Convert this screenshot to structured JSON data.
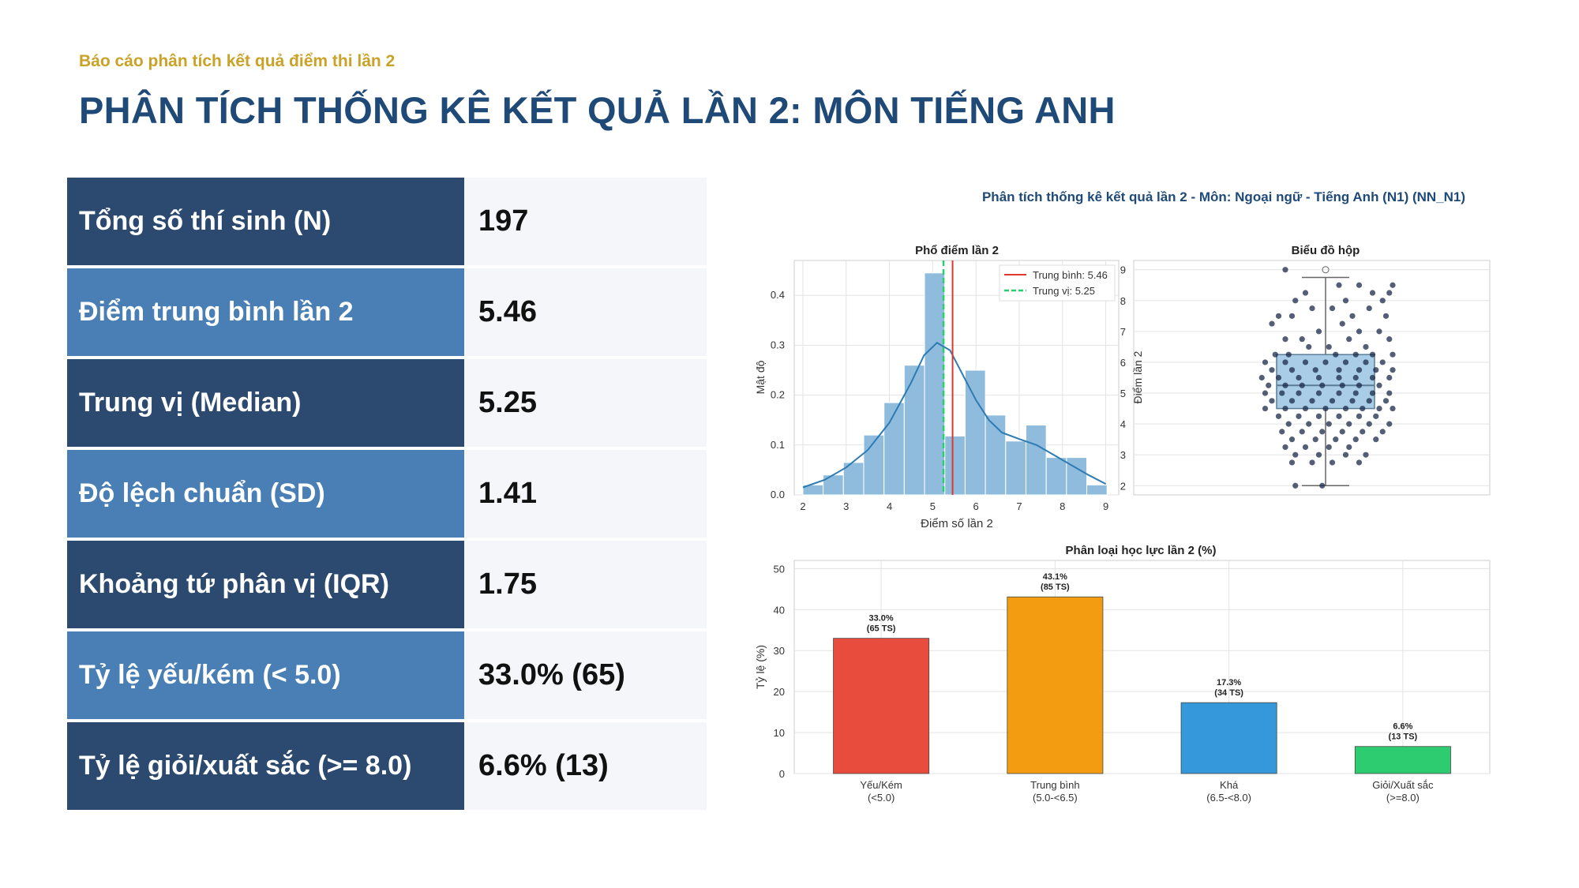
{
  "header": {
    "subtitle": "Báo cáo phân tích kết quả điểm thi lần 2",
    "title": "PHÂN TÍCH THỐNG KÊ KẾT QUẢ LẦN 2: MÔN TIẾNG ANH"
  },
  "stats": [
    {
      "label": "Tổng số thí sinh (N)",
      "value": "197"
    },
    {
      "label": "Điểm trung bình lần 2",
      "value": "5.46"
    },
    {
      "label": "Trung vị (Median)",
      "value": "5.25"
    },
    {
      "label": "Độ lệch chuẩn (SD)",
      "value": "1.41"
    },
    {
      "label": "Khoảng tứ phân vị (IQR)",
      "value": "1.75"
    },
    {
      "label": "Tỷ lệ yếu/kém (< 5.0)",
      "value": "33.0% (65)"
    },
    {
      "label": "Tỷ lệ giỏi/xuất sắc (>= 8.0)",
      "value": "6.6% (13)"
    }
  ],
  "colors": {
    "dark_label": "#2c4a70",
    "light_label": "#4a7fb5",
    "value_bg": "#f4f6f9",
    "title": "#1f4a78",
    "subtitle": "#c9a227",
    "hist_bar": "#8fbcdd",
    "kde": "#2e7bb4",
    "mean_line": "#e0382f",
    "median_line": "#2ecc71"
  },
  "figure_title": "Phân tích thống kê kết quả lần 2 - Môn: Ngoại ngữ - Tiếng Anh (N1) (NN_N1)",
  "chart_data": [
    {
      "type": "histogram",
      "title": "Phổ điểm lần 2",
      "xlabel": "Điểm số lần 2",
      "ylabel": "Mật độ",
      "xlim": [
        1.8,
        9.3
      ],
      "ylim": [
        0,
        0.47
      ],
      "xticks": [
        2,
        3,
        4,
        5,
        6,
        7,
        8,
        9
      ],
      "yticks": [
        0.0,
        0.1,
        0.2,
        0.3,
        0.4
      ],
      "bin_width": 0.468,
      "bins": [
        {
          "x": 2.0,
          "y": 0.02
        },
        {
          "x": 2.468,
          "y": 0.04
        },
        {
          "x": 2.937,
          "y": 0.065
        },
        {
          "x": 3.406,
          "y": 0.12
        },
        {
          "x": 3.875,
          "y": 0.185
        },
        {
          "x": 4.343,
          "y": 0.26
        },
        {
          "x": 4.812,
          "y": 0.445
        },
        {
          "x": 5.281,
          "y": 0.118
        },
        {
          "x": 5.75,
          "y": 0.25
        },
        {
          "x": 6.218,
          "y": 0.16
        },
        {
          "x": 6.687,
          "y": 0.108
        },
        {
          "x": 7.156,
          "y": 0.14
        },
        {
          "x": 7.625,
          "y": 0.075
        },
        {
          "x": 8.093,
          "y": 0.075
        },
        {
          "x": 8.562,
          "y": 0.02
        }
      ],
      "kde": [
        [
          2.0,
          0.015
        ],
        [
          2.5,
          0.03
        ],
        [
          3.0,
          0.055
        ],
        [
          3.5,
          0.09
        ],
        [
          4.0,
          0.145
        ],
        [
          4.5,
          0.225
        ],
        [
          4.8,
          0.28
        ],
        [
          5.1,
          0.305
        ],
        [
          5.4,
          0.29
        ],
        [
          5.7,
          0.24
        ],
        [
          6.0,
          0.19
        ],
        [
          6.3,
          0.15
        ],
        [
          6.6,
          0.125
        ],
        [
          7.0,
          0.112
        ],
        [
          7.4,
          0.1
        ],
        [
          7.8,
          0.08
        ],
        [
          8.2,
          0.06
        ],
        [
          8.6,
          0.04
        ],
        [
          9.0,
          0.022
        ]
      ],
      "mean": 5.46,
      "median": 5.25,
      "legend": [
        {
          "label": "Trung bình: 5.46"
        },
        {
          "label": "Trung vị: 5.25"
        }
      ],
      "legend_position": "top-right",
      "grid": true
    },
    {
      "type": "box",
      "title": "Biểu đồ hộp",
      "ylabel": "Điểm lần 2",
      "ylim": [
        1.7,
        9.3
      ],
      "yticks": [
        2,
        3,
        4,
        5,
        6,
        7,
        8,
        9
      ],
      "q1": 4.5,
      "median": 5.25,
      "q3": 6.25,
      "whisker_low": 2.0,
      "whisker_high": 8.75,
      "outliers": [
        9.0
      ],
      "points": [
        [
          -0.6,
          9.0
        ],
        [
          0.2,
          8.5
        ],
        [
          -0.3,
          8.25
        ],
        [
          0.5,
          8.5
        ],
        [
          0.7,
          8.25
        ],
        [
          -0.45,
          8.0
        ],
        [
          0.3,
          8.0
        ],
        [
          0.85,
          8.0
        ],
        [
          0.95,
          8.25
        ],
        [
          1.0,
          8.5
        ],
        [
          -0.7,
          7.5
        ],
        [
          -0.5,
          7.5
        ],
        [
          -0.2,
          7.75
        ],
        [
          0.1,
          7.75
        ],
        [
          0.4,
          7.5
        ],
        [
          0.65,
          7.75
        ],
        [
          0.9,
          7.5
        ],
        [
          -0.8,
          7.25
        ],
        [
          -0.1,
          7.0
        ],
        [
          0.25,
          7.25
        ],
        [
          0.5,
          7.0
        ],
        [
          0.8,
          7.0
        ],
        [
          -0.6,
          6.75
        ],
        [
          -0.35,
          6.75
        ],
        [
          0.05,
          6.5
        ],
        [
          0.35,
          6.75
        ],
        [
          0.6,
          6.5
        ],
        [
          0.95,
          6.75
        ],
        [
          -0.75,
          6.25
        ],
        [
          -0.55,
          6.25
        ],
        [
          -0.25,
          6.5
        ],
        [
          0.15,
          6.25
        ],
        [
          0.45,
          6.25
        ],
        [
          0.7,
          6.25
        ],
        [
          1.0,
          6.25
        ],
        [
          -0.9,
          6.0
        ],
        [
          -0.6,
          6.0
        ],
        [
          -0.3,
          6.0
        ],
        [
          0.0,
          6.0
        ],
        [
          0.3,
          6.0
        ],
        [
          0.6,
          6.0
        ],
        [
          0.85,
          6.0
        ],
        [
          -0.8,
          5.75
        ],
        [
          -0.5,
          5.75
        ],
        [
          -0.15,
          5.75
        ],
        [
          0.2,
          5.75
        ],
        [
          0.5,
          5.75
        ],
        [
          0.75,
          5.75
        ],
        [
          1.0,
          5.75
        ],
        [
          -0.95,
          5.5
        ],
        [
          -0.7,
          5.5
        ],
        [
          -0.4,
          5.5
        ],
        [
          -0.1,
          5.5
        ],
        [
          0.2,
          5.5
        ],
        [
          0.45,
          5.5
        ],
        [
          0.7,
          5.5
        ],
        [
          0.95,
          5.5
        ],
        [
          -0.85,
          5.25
        ],
        [
          -0.6,
          5.25
        ],
        [
          -0.35,
          5.25
        ],
        [
          -0.05,
          5.25
        ],
        [
          0.25,
          5.25
        ],
        [
          0.5,
          5.25
        ],
        [
          0.8,
          5.25
        ],
        [
          -0.9,
          5.0
        ],
        [
          -0.65,
          5.0
        ],
        [
          -0.4,
          5.0
        ],
        [
          -0.1,
          5.0
        ],
        [
          0.2,
          5.0
        ],
        [
          0.45,
          5.0
        ],
        [
          0.7,
          5.0
        ],
        [
          0.95,
          5.0
        ],
        [
          -0.8,
          4.75
        ],
        [
          -0.5,
          4.75
        ],
        [
          -0.2,
          4.75
        ],
        [
          0.1,
          4.75
        ],
        [
          0.4,
          4.75
        ],
        [
          0.65,
          4.75
        ],
        [
          0.9,
          4.75
        ],
        [
          -0.9,
          4.5
        ],
        [
          -0.6,
          4.5
        ],
        [
          -0.3,
          4.5
        ],
        [
          0.0,
          4.5
        ],
        [
          0.3,
          4.5
        ],
        [
          0.55,
          4.5
        ],
        [
          0.8,
          4.5
        ],
        [
          1.0,
          4.5
        ],
        [
          -0.7,
          4.25
        ],
        [
          -0.4,
          4.25
        ],
        [
          -0.1,
          4.25
        ],
        [
          0.2,
          4.25
        ],
        [
          0.5,
          4.25
        ],
        [
          0.75,
          4.25
        ],
        [
          -0.55,
          4.0
        ],
        [
          -0.25,
          4.0
        ],
        [
          0.05,
          4.0
        ],
        [
          0.35,
          4.0
        ],
        [
          0.65,
          4.0
        ],
        [
          0.95,
          4.0
        ],
        [
          -0.65,
          3.75
        ],
        [
          -0.35,
          3.75
        ],
        [
          -0.05,
          3.75
        ],
        [
          0.25,
          3.75
        ],
        [
          0.55,
          3.75
        ],
        [
          0.85,
          3.75
        ],
        [
          -0.5,
          3.5
        ],
        [
          -0.15,
          3.5
        ],
        [
          0.15,
          3.5
        ],
        [
          0.45,
          3.5
        ],
        [
          0.75,
          3.5
        ],
        [
          -0.6,
          3.25
        ],
        [
          -0.3,
          3.25
        ],
        [
          0.05,
          3.25
        ],
        [
          0.35,
          3.25
        ],
        [
          -0.45,
          3.0
        ],
        [
          -0.1,
          3.0
        ],
        [
          0.3,
          3.0
        ],
        [
          0.6,
          3.0
        ],
        [
          -0.5,
          2.75
        ],
        [
          -0.2,
          2.75
        ],
        [
          0.1,
          2.75
        ],
        [
          0.5,
          2.75
        ],
        [
          -0.45,
          2.0
        ],
        [
          -0.05,
          2.0
        ]
      ],
      "grid": true
    },
    {
      "type": "bar",
      "title": "Phân loại học lực lần 2 (%)",
      "xlabel": "",
      "ylabel": "Tỷ lệ (%)",
      "ylim": [
        0,
        52
      ],
      "yticks": [
        0,
        10,
        20,
        30,
        40,
        50
      ],
      "categories": [
        {
          "line1": "Yếu/Kém",
          "line2": "(<5.0)"
        },
        {
          "line1": "Trung bình",
          "line2": "(5.0-<6.5)"
        },
        {
          "line1": "Khá",
          "line2": "(6.5-<8.0)"
        },
        {
          "line1": "Giỏi/Xuất sắc",
          "line2": "(>=8.0)"
        }
      ],
      "values": [
        33.0,
        43.1,
        17.3,
        6.6
      ],
      "labels": [
        {
          "pct": "33.0%",
          "count": "(65 TS)"
        },
        {
          "pct": "43.1%",
          "count": "(85 TS)"
        },
        {
          "pct": "17.3%",
          "count": "(34 TS)"
        },
        {
          "pct": "6.6%",
          "count": "(13 TS)"
        }
      ],
      "bar_colors": [
        "#e74c3c",
        "#f39c12",
        "#3498db",
        "#2ecc71"
      ],
      "grid": true
    }
  ]
}
